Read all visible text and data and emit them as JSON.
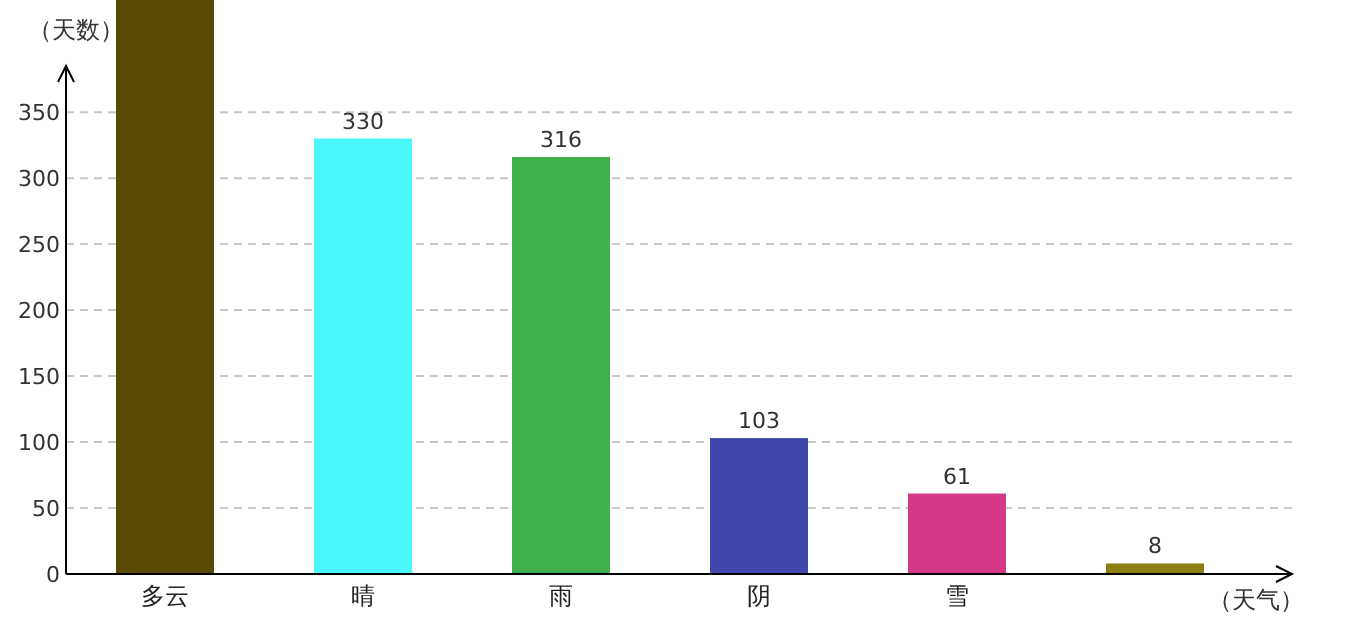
{
  "chart_data": {
    "type": "bar",
    "xlabel": "（天气）",
    "ylabel": "（天数）",
    "categories": [
      "多云",
      "晴",
      "雨",
      "阴",
      "雪",
      null
    ],
    "values": [
      435,
      330,
      316,
      103,
      61,
      8
    ],
    "colors": [
      "#574a02",
      "#4af8fc",
      "#3fb14b",
      "#4146aa",
      "#d63a86",
      "#8c7f12"
    ],
    "value_labels": [
      null,
      "330",
      "316",
      "103",
      "61",
      "8"
    ],
    "ylim": [
      0,
      435
    ],
    "yticks": [
      0,
      50,
      100,
      150,
      200,
      250,
      300,
      350
    ],
    "grid": "y"
  }
}
